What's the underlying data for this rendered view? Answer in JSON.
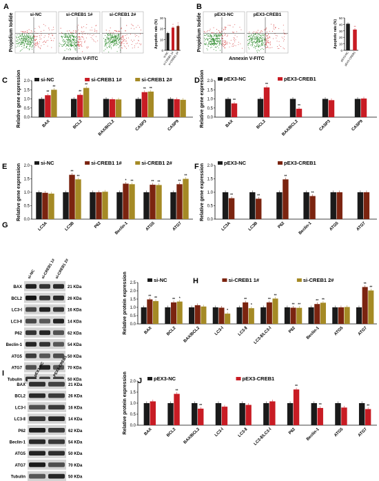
{
  "figure_title": "",
  "colors": {
    "black": "#1a1a1a",
    "red": "#c81c24",
    "darkred": "#7b2410",
    "olive": "#a58a25",
    "pink": "#f2b0cf",
    "flow_green": "#2f8c2f",
    "flow_red": "#d64040"
  },
  "panels": {
    "A": {
      "letter": "A",
      "ylabel": "Propidium Iodide",
      "xlabel": "Annexin V-FITC",
      "plots": [
        "si-NC",
        "si-CREB1 1#",
        "si-CREB1 2#"
      ]
    },
    "B": {
      "letter": "B",
      "ylabel": "Propidium Iodide",
      "xlabel": "Annexin V-FITC",
      "plots": [
        "pEX3-NC",
        "pEX3-CREB1"
      ]
    },
    "G": {
      "letter": "G",
      "lanes": [
        "si-NC",
        "si-CREB1 1#",
        "si-CREB1 2#"
      ],
      "rows": [
        {
          "label": "BAX",
          "kda": "21 KDa"
        },
        {
          "label": "BCL2",
          "kda": "26 KDa"
        },
        {
          "label": "LC3-Ⅰ",
          "kda": "16 KDa"
        },
        {
          "label": "LC3-Ⅱ",
          "kda": "14 KDa"
        },
        {
          "label": "P62",
          "kda": "62 KDa"
        },
        {
          "label": "Beclin-1",
          "kda": "54 KDa"
        },
        {
          "label": "ATG5",
          "kda": "50 KDa"
        },
        {
          "label": "ATG7",
          "kda": "70 KDa"
        },
        {
          "label": "Tubulin",
          "kda": "50 KDa"
        }
      ]
    },
    "I": {
      "letter": "I",
      "lanes": [
        "pEX3-NC",
        "PEX3-CREB1"
      ],
      "rows": [
        {
          "label": "BAX",
          "kda": "21 KDa"
        },
        {
          "label": "BCL2",
          "kda": "26 KDa"
        },
        {
          "label": "LC3-Ⅰ",
          "kda": "16 KDa"
        },
        {
          "label": "LC3-Ⅱ",
          "kda": "14 KDa"
        },
        {
          "label": "P62",
          "kda": "62 KDa"
        },
        {
          "label": "Beclin-1",
          "kda": "54 KDa"
        },
        {
          "label": "ATG5",
          "kda": "50 KDa"
        },
        {
          "label": "ATG7",
          "kda": "70 KDa"
        },
        {
          "label": "Tubulin",
          "kda": "50 KDa"
        }
      ]
    }
  },
  "chart_data": [
    {
      "id": "A_bar",
      "type": "bar",
      "ylabel": "Apoptotic rate (%)",
      "ylim": [
        0,
        30
      ],
      "yticks": [
        0,
        10,
        20,
        30
      ],
      "categories": [
        "si-NC",
        "si-CREB1 1#",
        "si-CREB1 2#"
      ],
      "values": [
        16,
        21,
        22.5
      ],
      "sig": [
        "",
        "*",
        "*"
      ],
      "colors": [
        "#1a1a1a",
        "#c81c24",
        "#7b2410"
      ],
      "legend": []
    },
    {
      "id": "B_bar",
      "type": "bar",
      "ylabel": "Apoptotic rate (%)",
      "ylim": [
        0,
        50
      ],
      "yticks": [
        0,
        10,
        20,
        30,
        40,
        50
      ],
      "categories": [
        "pEX3-NC",
        "pEX3-CREB1"
      ],
      "values": [
        41,
        32
      ],
      "sig": [
        "",
        "**"
      ],
      "colors": [
        "#1a1a1a",
        "#c81c24"
      ],
      "legend": []
    },
    {
      "id": "C",
      "letter": "C",
      "type": "bar",
      "ylabel": "Relative gene expression",
      "ylim": [
        0,
        2.0
      ],
      "yticks": [
        0.0,
        0.5,
        1.0,
        1.5,
        2.0
      ],
      "categories": [
        "BAX",
        "BCL2",
        "BAX/BCL2",
        "CASP3",
        "CASP9"
      ],
      "legend": [
        "si-NC",
        "si-CREB1 1#",
        "si-CREB1 2#"
      ],
      "colors": [
        "#1a1a1a",
        "#c81c24",
        "#a58a25"
      ],
      "series": [
        {
          "name": "si-NC",
          "values": [
            1.0,
            1.0,
            1.0,
            1.0,
            1.0
          ],
          "sig": [
            "",
            "",
            "",
            "",
            ""
          ]
        },
        {
          "name": "si-CREB1 1#",
          "values": [
            1.2,
            1.22,
            0.98,
            1.37,
            0.98
          ],
          "sig": [
            "**",
            "**",
            "",
            "**",
            ""
          ]
        },
        {
          "name": "si-CREB1 2#",
          "values": [
            1.5,
            1.6,
            0.97,
            1.4,
            0.95
          ],
          "sig": [
            "**",
            "**",
            "",
            "**",
            ""
          ]
        }
      ]
    },
    {
      "id": "D",
      "letter": "D",
      "type": "bar",
      "ylabel": "Relative gene expression",
      "ylim": [
        0,
        2.0
      ],
      "yticks": [
        0.0,
        0.5,
        1.0,
        1.5,
        2.0
      ],
      "categories": [
        "BAX",
        "BCL2",
        "BAX/BCL2",
        "CASP3",
        "CASP9"
      ],
      "legend": [
        "pEX3-NC",
        "pEX3-CREB1"
      ],
      "colors": [
        "#1a1a1a",
        "#c81c24"
      ],
      "series": [
        {
          "name": "pEX3-NC",
          "values": [
            1.0,
            1.0,
            1.0,
            1.0,
            1.0
          ],
          "sig": [
            "",
            "",
            "",
            "",
            ""
          ]
        },
        {
          "name": "pEX3-CREB1",
          "values": [
            0.75,
            1.63,
            0.46,
            0.93,
            1.02
          ],
          "sig": [
            "**",
            "**",
            "**",
            "",
            ""
          ]
        }
      ]
    },
    {
      "id": "E",
      "letter": "E",
      "type": "bar",
      "ylabel": "Relative gene expression",
      "ylim": [
        0,
        2.0
      ],
      "yticks": [
        0.0,
        0.5,
        1.0,
        1.5,
        2.0
      ],
      "ytick_labels": [
        "0.0",
        "0.5",
        "1.0",
        "1.5",
        "2.0"
      ],
      "categories": [
        "LC3A",
        "LC3B",
        "P62",
        "Beclin-1",
        "ATG5",
        "ATG7"
      ],
      "legend": [
        "si-NC",
        "si-CREB1 1#",
        "si-CREB1 2#"
      ],
      "colors": [
        "#1a1a1a",
        "#7b2410",
        "#a58a25"
      ],
      "series": [
        {
          "name": "si-NC",
          "values": [
            1.0,
            1.0,
            1.0,
            1.0,
            1.0,
            1.0
          ],
          "sig": [
            "",
            "",
            "",
            "",
            "",
            ""
          ]
        },
        {
          "name": "si-CREB1 1#",
          "values": [
            0.98,
            1.65,
            1.0,
            1.32,
            1.28,
            1.3
          ],
          "sig": [
            "",
            "**",
            "",
            "*",
            "**",
            "**"
          ]
        },
        {
          "name": "si-CREB1 2#",
          "values": [
            0.95,
            1.48,
            1.02,
            1.3,
            1.27,
            1.5
          ],
          "sig": [
            "",
            "**",
            "",
            "**",
            "**",
            "**"
          ]
        }
      ]
    },
    {
      "id": "F",
      "letter": "F",
      "type": "bar",
      "ylabel": "Relative gene expression",
      "ylim": [
        0,
        2.0
      ],
      "yticks": [
        0.0,
        0.5,
        1.0,
        1.5,
        2.0
      ],
      "categories": [
        "LC3A",
        "LC3B",
        "P62",
        "Beclin-1",
        "ATG5",
        "ATG7"
      ],
      "legend": [
        "pEX3-NC",
        "pEX3-CREB1"
      ],
      "colors": [
        "#1a1a1a",
        "#7b2410"
      ],
      "series": [
        {
          "name": "pEX3-NC",
          "values": [
            1.0,
            1.0,
            1.0,
            1.0,
            1.0,
            1.0
          ],
          "sig": [
            "",
            "",
            "",
            "",
            "",
            ""
          ]
        },
        {
          "name": "pEX3-CREB1",
          "values": [
            0.78,
            0.76,
            1.48,
            0.86,
            1.0,
            1.0
          ],
          "sig": [
            "**",
            "**",
            "**",
            "**",
            "",
            ""
          ]
        }
      ]
    },
    {
      "id": "H",
      "letter": "H",
      "type": "bar",
      "ylabel": "Relative protein expression",
      "ylim": [
        0,
        2.5
      ],
      "yticks": [
        0.0,
        0.5,
        1.0,
        1.5,
        2.0,
        2.5
      ],
      "categories": [
        "BAX",
        "BCL2",
        "BAX/BCL2",
        "LC3-Ⅰ",
        "LC3-Ⅱ",
        "LC3-Ⅱ/LC3-Ⅰ",
        "P62",
        "Beclin-1",
        "ATG5",
        "ATG7"
      ],
      "legend": [
        "si-NC",
        "si-CREB1 1#",
        "si-CREB1 2#"
      ],
      "colors": [
        "#1a1a1a",
        "#7b2410",
        "#a58a25"
      ],
      "series": [
        {
          "name": "si-NC",
          "values": [
            1.0,
            1.0,
            1.0,
            1.0,
            1.0,
            1.0,
            1.0,
            1.0,
            1.0,
            1.0
          ],
          "sig": [
            "",
            "",
            "",
            "",
            "",
            "",
            "",
            "",
            "",
            ""
          ]
        },
        {
          "name": "si-CREB1 1#",
          "values": [
            1.48,
            1.3,
            1.13,
            0.98,
            1.3,
            1.3,
            0.98,
            1.2,
            1.0,
            2.23
          ],
          "sig": [
            "**",
            "**",
            "",
            "",
            "**",
            "**",
            "**",
            "**",
            "",
            "**"
          ]
        },
        {
          "name": "si-CREB1 2#",
          "values": [
            1.38,
            1.35,
            1.05,
            0.62,
            0.95,
            1.53,
            0.97,
            1.28,
            1.02,
            2.02
          ],
          "sig": [
            "**",
            "*",
            "",
            "*",
            "*",
            "**",
            "**",
            "**",
            "",
            "**"
          ]
        }
      ]
    },
    {
      "id": "J",
      "letter": "J",
      "type": "bar",
      "ylabel": "Relative protein expression",
      "ylim": [
        0,
        2.0
      ],
      "yticks": [
        0.0,
        0.5,
        1.0,
        1.5,
        2.0
      ],
      "categories": [
        "BAX",
        "BCL2",
        "BAX/BCL2",
        "LC3-Ⅰ",
        "LC3-Ⅱ",
        "LC3-Ⅱ/LC3-Ⅰ",
        "P62",
        "Beclin-1",
        "ATG5",
        "ATG7"
      ],
      "legend": [
        "pEX3-NC",
        "pEX3-CREB1"
      ],
      "colors": [
        "#1a1a1a",
        "#c81c24"
      ],
      "series": [
        {
          "name": "pEX3-NC",
          "values": [
            1.0,
            1.0,
            1.0,
            1.0,
            1.0,
            1.0,
            1.0,
            1.0,
            1.0,
            1.0
          ],
          "sig": [
            "",
            "",
            "",
            "",
            "",
            "",
            "",
            "",
            "",
            ""
          ]
        },
        {
          "name": "pEX3-CREB1",
          "values": [
            1.08,
            1.42,
            0.75,
            0.84,
            0.92,
            1.08,
            1.62,
            0.78,
            0.8,
            0.73
          ],
          "sig": [
            "",
            "**",
            "**",
            "",
            "",
            "",
            "**",
            "**",
            "",
            "**"
          ]
        }
      ]
    }
  ]
}
